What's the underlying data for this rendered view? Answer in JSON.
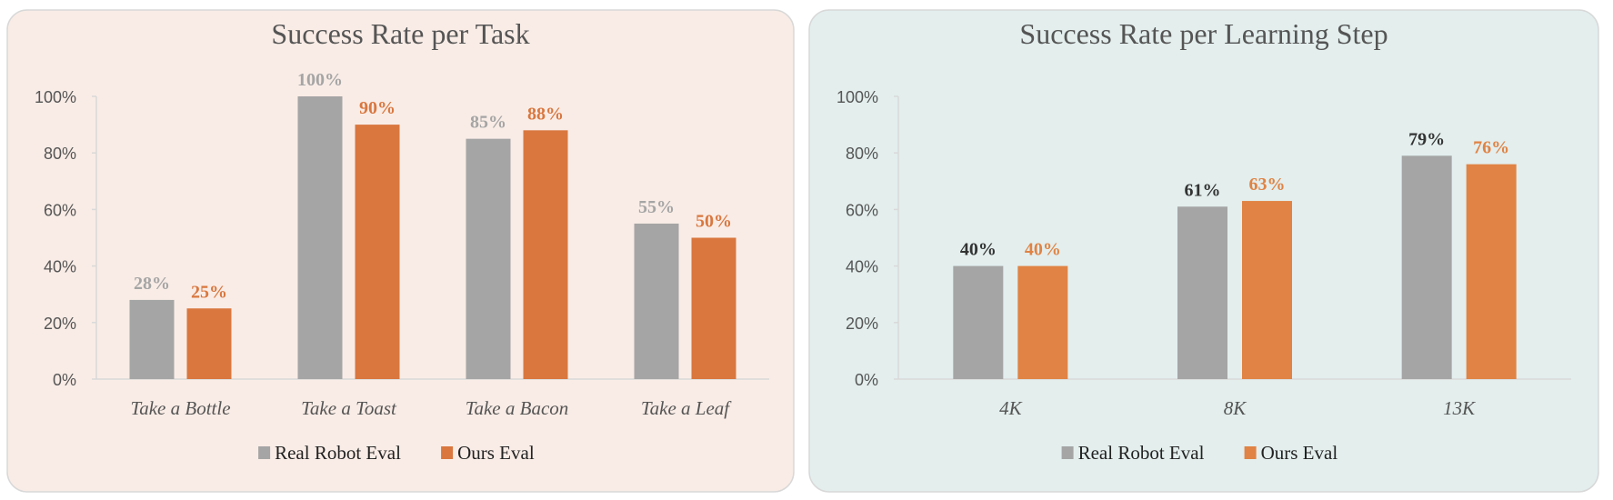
{
  "chart_data": [
    {
      "type": "bar",
      "title": "Success Rate per Task",
      "categories": [
        "Take a Bottle",
        "Take a Toast",
        "Take a Bacon",
        "Take a Leaf"
      ],
      "series": [
        {
          "name": "Real Robot Eval",
          "values": [
            28,
            100,
            85,
            55
          ],
          "color": "#a5a5a5",
          "label_color": "#a5a5a5"
        },
        {
          "name": "Ours Eval",
          "values": [
            25,
            90,
            88,
            50
          ],
          "color": "#d9773f",
          "label_color": "#d9773f"
        }
      ],
      "data_labels": [
        [
          "28%",
          "100%",
          "85%",
          "55%"
        ],
        [
          "25%",
          "90%",
          "88%",
          "50%"
        ]
      ],
      "yticks": [
        "0%",
        "20%",
        "40%",
        "60%",
        "80%",
        "100%"
      ],
      "ylim": [
        0,
        100
      ],
      "legend": "bottom",
      "background": "#f9ece6",
      "grid": false
    },
    {
      "type": "bar",
      "title": "Success Rate per Learning Step",
      "categories": [
        "4K",
        "8K",
        "13K"
      ],
      "series": [
        {
          "name": "Real Robot Eval",
          "values": [
            40,
            61,
            79
          ],
          "color": "#a5a5a5",
          "label_color": "#333333"
        },
        {
          "name": "Ours Eval",
          "values": [
            40,
            63,
            76
          ],
          "color": "#e08344",
          "label_color": "#e08344"
        }
      ],
      "data_labels": [
        [
          "40%",
          "61%",
          "79%"
        ],
        [
          "40%",
          "63%",
          "76%"
        ]
      ],
      "yticks": [
        "0%",
        "20%",
        "40%",
        "60%",
        "80%",
        "100%"
      ],
      "ylim": [
        0,
        100
      ],
      "legend": "bottom",
      "background": "#e3eeed",
      "grid": false
    }
  ]
}
